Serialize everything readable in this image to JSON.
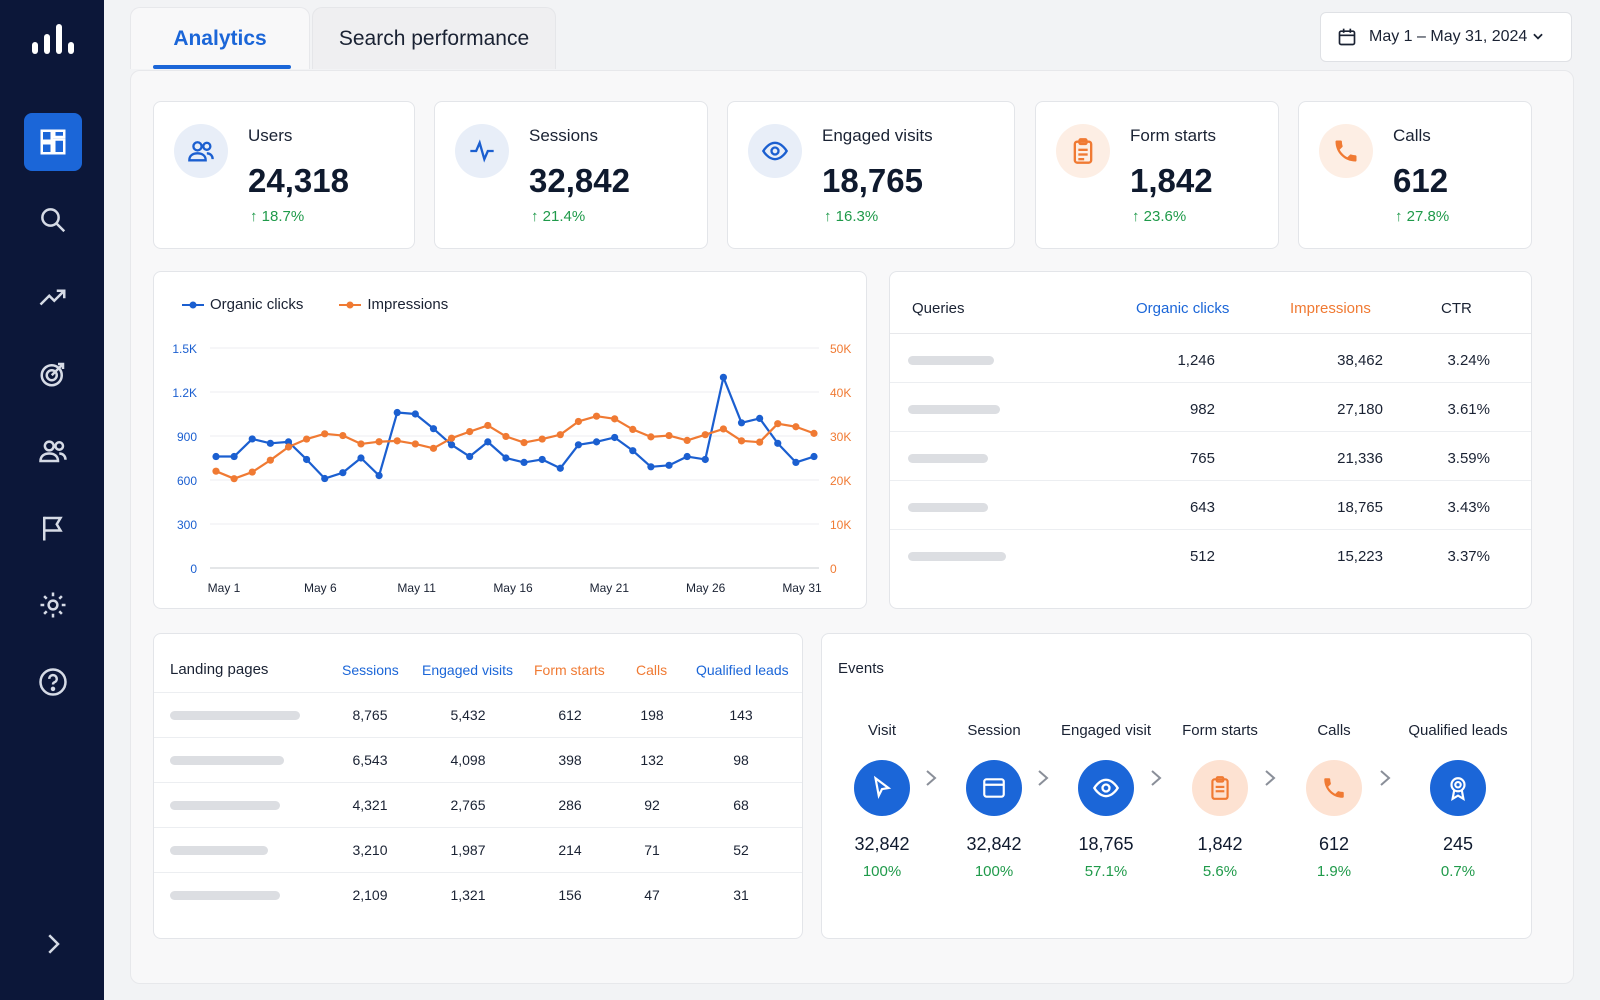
{
  "tabs": {
    "analytics": "Analytics",
    "search": "Search performance"
  },
  "date_range": "May 1 – May 31, 2024",
  "stats": [
    {
      "label": "Users",
      "value": "24,318",
      "change": "↑  18.7%"
    },
    {
      "label": "Sessions",
      "value": "32,842",
      "change": "↑  21.4%"
    },
    {
      "label": "Engaged visits",
      "value": "18,765",
      "change": "↑  16.3%"
    },
    {
      "label": "Form starts",
      "value": "1,842",
      "change": "↑  23.6%"
    },
    {
      "label": "Calls",
      "value": "612",
      "change": "↑  27.8%"
    }
  ],
  "chart_data": {
    "type": "line",
    "x_ticks": [
      "May 1",
      "May 6",
      "May 11",
      "May 16",
      "May 21",
      "May 26",
      "May 31"
    ],
    "y_left_ticks": [
      "0",
      "300",
      "600",
      "900",
      "1.2K",
      "1.5K"
    ],
    "y_right_ticks": [
      "0",
      "10K",
      "20K",
      "30K",
      "40K",
      "50K"
    ],
    "ylim_left": [
      0,
      1500
    ],
    "ylim_right": [
      0,
      50000
    ],
    "series": [
      {
        "name": "Organic clicks",
        "color": "#1b5fd0",
        "axis": "left",
        "values": [
          760,
          760,
          880,
          850,
          860,
          740,
          610,
          650,
          750,
          630,
          1060,
          1050,
          950,
          840,
          760,
          860,
          750,
          720,
          740,
          680,
          840,
          860,
          890,
          800,
          690,
          700,
          760,
          740,
          1300,
          990,
          1020,
          850,
          720,
          760
        ]
      },
      {
        "name": "Impressions",
        "color": "#f07a33",
        "axis": "right",
        "values": [
          22000,
          20300,
          21800,
          24500,
          27500,
          29300,
          30500,
          30100,
          28200,
          28700,
          28900,
          28200,
          27200,
          29500,
          31000,
          32400,
          29900,
          28500,
          29300,
          30300,
          33300,
          34500,
          33900,
          31500,
          29800,
          30100,
          29000,
          30300,
          31600,
          28900,
          28600,
          32800,
          32100,
          30600
        ]
      }
    ]
  },
  "queries": {
    "headers": [
      "Queries",
      "Organic clicks",
      "Impressions",
      "CTR"
    ],
    "rows": [
      [
        "1,246",
        "38,462",
        "3.24%"
      ],
      [
        "982",
        "27,180",
        "3.61%"
      ],
      [
        "765",
        "21,336",
        "3.59%"
      ],
      [
        "643",
        "18,765",
        "3.43%"
      ],
      [
        "512",
        "15,223",
        "3.37%"
      ]
    ]
  },
  "landing": {
    "headers": [
      "Landing pages",
      "Sessions",
      "Engaged visits",
      "Form starts",
      "Calls",
      "Qualified leads"
    ],
    "rows": [
      [
        "8,765",
        "5,432",
        "612",
        "198",
        "143"
      ],
      [
        "6,543",
        "4,098",
        "398",
        "132",
        "98"
      ],
      [
        "4,321",
        "2,765",
        "286",
        "92",
        "68"
      ],
      [
        "3,210",
        "1,987",
        "214",
        "71",
        "52"
      ],
      [
        "2,109",
        "1,321",
        "156",
        "47",
        "31"
      ]
    ]
  },
  "events": {
    "title": "Events",
    "steps": [
      {
        "name": "Visit",
        "value": "32,842",
        "pct": "100%"
      },
      {
        "name": "Session",
        "value": "32,842",
        "pct": "100%"
      },
      {
        "name": "Engaged visit",
        "value": "18,765",
        "pct": "57.1%"
      },
      {
        "name": "Form starts",
        "value": "1,842",
        "pct": "5.6%"
      },
      {
        "name": "Calls",
        "value": "612",
        "pct": "1.9%"
      },
      {
        "name": "Qualified leads",
        "value": "245",
        "pct": "0.7%"
      }
    ]
  },
  "colors": {
    "blue": "#1b66d8",
    "orange": "#f07a33",
    "green": "#1f9a4a",
    "sidebar": "#0c1739"
  },
  "sidebar_icons": [
    "dashboard-icon",
    "search-icon",
    "trend-icon",
    "target-icon",
    "users-icon",
    "flag-icon",
    "gear-icon",
    "help-icon",
    "chevron-right-icon"
  ]
}
